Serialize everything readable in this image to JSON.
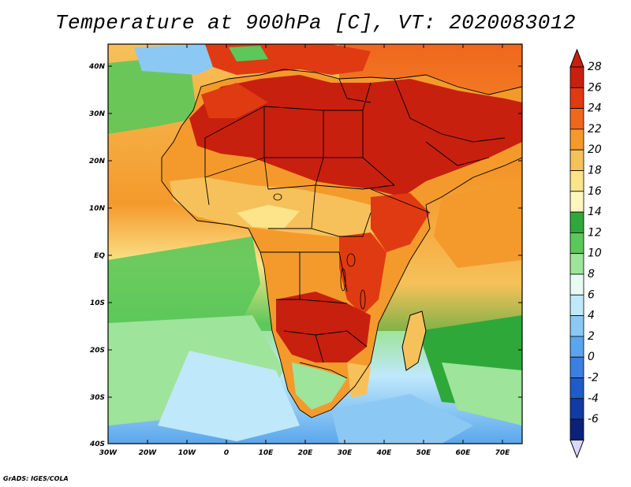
{
  "title": "Temperature at 900hPa [C], VT: 2020083012",
  "footer": "GrADS: IGES/COLA",
  "map": {
    "region": "Africa",
    "lon_labels": [
      "30W",
      "20W",
      "10W",
      "0",
      "10E",
      "20E",
      "30E",
      "40E",
      "50E",
      "60E",
      "70E"
    ],
    "lat_labels": [
      "40N",
      "30N",
      "20N",
      "10N",
      "EQ",
      "10S",
      "20S",
      "30S",
      "40S"
    ],
    "ocean_color": "#7fd67a"
  },
  "colorbar": {
    "labels": [
      "28",
      "26",
      "24",
      "22",
      "20",
      "18",
      "16",
      "14",
      "12",
      "10",
      "8",
      "6",
      "4",
      "2",
      "0",
      "-2",
      "-4",
      "-6"
    ],
    "colors": [
      "#c8200e",
      "#e03a12",
      "#f0661d",
      "#f49a2c",
      "#f6c15a",
      "#fbe48a",
      "#fdf6be",
      "#2fa83a",
      "#5cc85a",
      "#9ee49a",
      "#e8fbf2",
      "#bfe8fb",
      "#8cc8f4",
      "#5aa6ec",
      "#3b80e0",
      "#1e5cc8",
      "#123ca4",
      "#0a2278"
    ],
    "top_cap_color": "#c8200e",
    "bottom_cap_color": "#d8d8ff"
  }
}
